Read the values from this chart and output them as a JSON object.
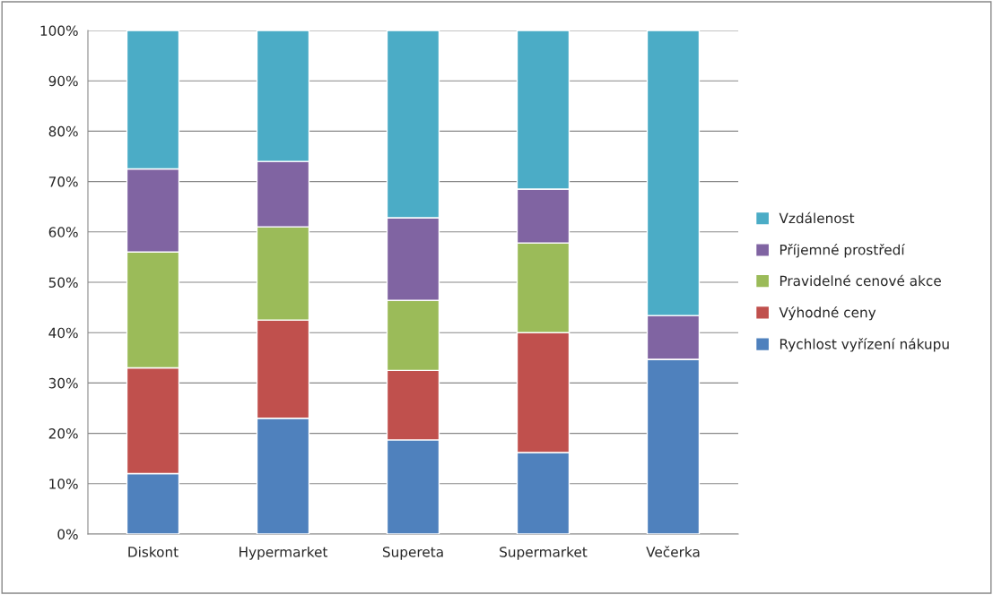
{
  "chart_data": {
    "type": "bar",
    "stacked": true,
    "categories": [
      "Diskont",
      "Hypermarket",
      "Supereta",
      "Supermarket",
      "Večerka"
    ],
    "series": [
      {
        "name": "Rychlost vyřízení nákupu",
        "color": "#4f81bd",
        "values": [
          12,
          23,
          18.7,
          16.2,
          34.7
        ]
      },
      {
        "name": "Výhodné ceny",
        "color": "#c0504d",
        "values": [
          21,
          19.5,
          13.8,
          23.8,
          0
        ]
      },
      {
        "name": "Pravidelné cenové akce",
        "color": "#9bbb59",
        "values": [
          23,
          18.5,
          13.9,
          17.8,
          0
        ]
      },
      {
        "name": "Příjemné prostředí",
        "color": "#8064a2",
        "values": [
          16.5,
          13,
          16.4,
          10.7,
          8.7
        ]
      },
      {
        "name": "Vzdálenost",
        "color": "#4bacc6",
        "values": [
          27.5,
          26,
          37.2,
          31.5,
          56.6
        ]
      }
    ],
    "ylim": [
      0,
      100
    ],
    "yticks": [
      {
        "value": 0,
        "label": "0%"
      },
      {
        "value": 10,
        "label": "10%"
      },
      {
        "value": 20,
        "label": "20%"
      },
      {
        "value": 30,
        "label": "30%"
      },
      {
        "value": 40,
        "label": "40%"
      },
      {
        "value": 50,
        "label": "50%"
      },
      {
        "value": 60,
        "label": "60%"
      },
      {
        "value": 70,
        "label": "70%"
      },
      {
        "value": 80,
        "label": "80%"
      },
      {
        "value": 90,
        "label": "90%"
      },
      {
        "value": 100,
        "label": "100%"
      }
    ],
    "grid": "y",
    "legend": "right"
  }
}
